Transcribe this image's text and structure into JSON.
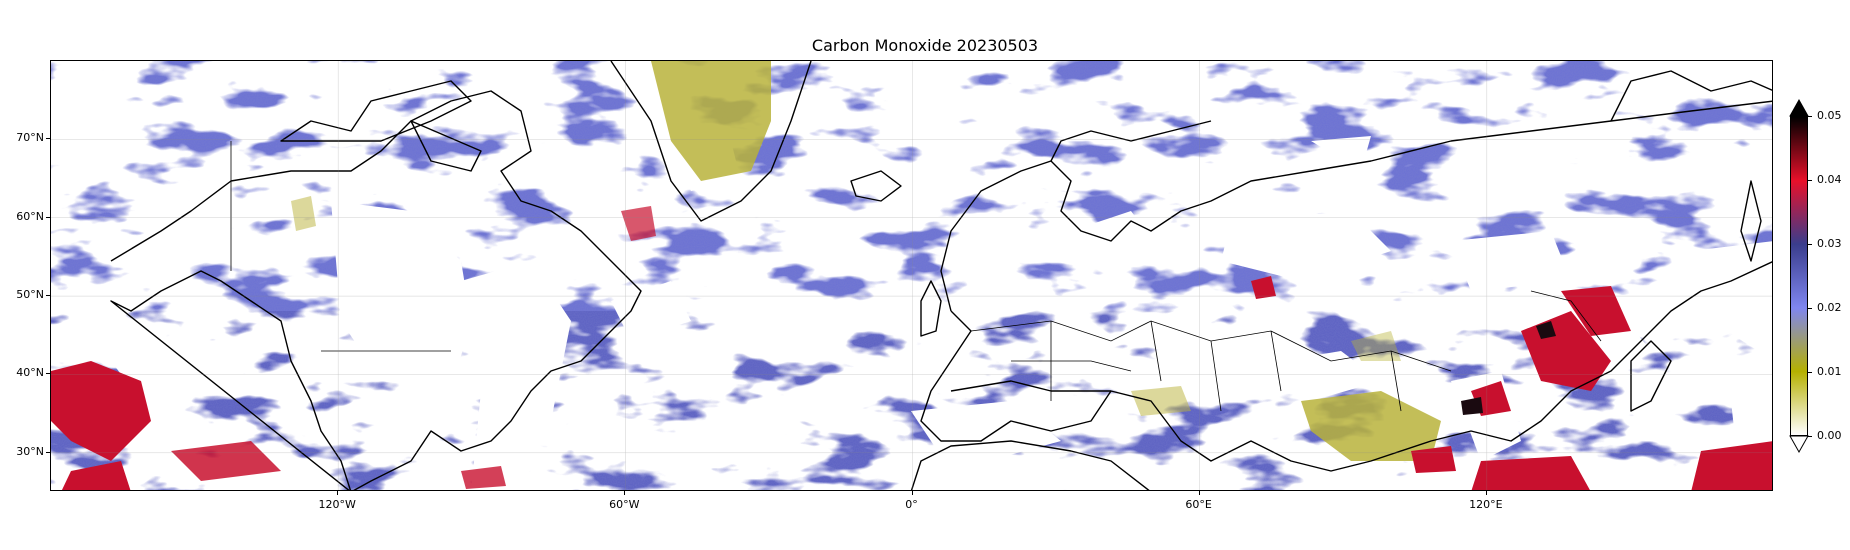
{
  "title": "Carbon Monoxide 20230503",
  "map": {
    "projection": "plate-carree",
    "extent": {
      "lon_min": -180,
      "lon_max": 180,
      "lat_min": 25,
      "lat_max": 80
    },
    "lat_ticks": [
      {
        "value": 70,
        "label": "70°N"
      },
      {
        "value": 60,
        "label": "60°N"
      },
      {
        "value": 50,
        "label": "50°N"
      },
      {
        "value": 40,
        "label": "40°N"
      },
      {
        "value": 30,
        "label": "30°N"
      }
    ],
    "lon_ticks": [
      {
        "value": -120,
        "label": "120°W"
      },
      {
        "value": -60,
        "label": "60°W"
      },
      {
        "value": 0,
        "label": "0°"
      },
      {
        "value": 60,
        "label": "60°E"
      },
      {
        "value": 120,
        "label": "120°E"
      }
    ],
    "colors": {
      "background_field": "#6a70d4",
      "cloud_gaps": "#ffffff",
      "low_values": "#b9b33a",
      "high_values": "#c8102e",
      "coastlines": "#000000"
    }
  },
  "colorbar": {
    "min": 0.0,
    "max": 0.05,
    "extend": "both",
    "ticks": [
      {
        "value": 0.0,
        "label": "0.00"
      },
      {
        "value": 0.01,
        "label": "0.01"
      },
      {
        "value": 0.02,
        "label": "0.02"
      },
      {
        "value": 0.03,
        "label": "0.03"
      },
      {
        "value": 0.04,
        "label": "0.04"
      },
      {
        "value": 0.05,
        "label": "0.05"
      }
    ],
    "stops": [
      "#ffffff",
      "#b5b000",
      "#7f86f0",
      "#3a3d8c",
      "#e8102a",
      "#000000"
    ]
  }
}
